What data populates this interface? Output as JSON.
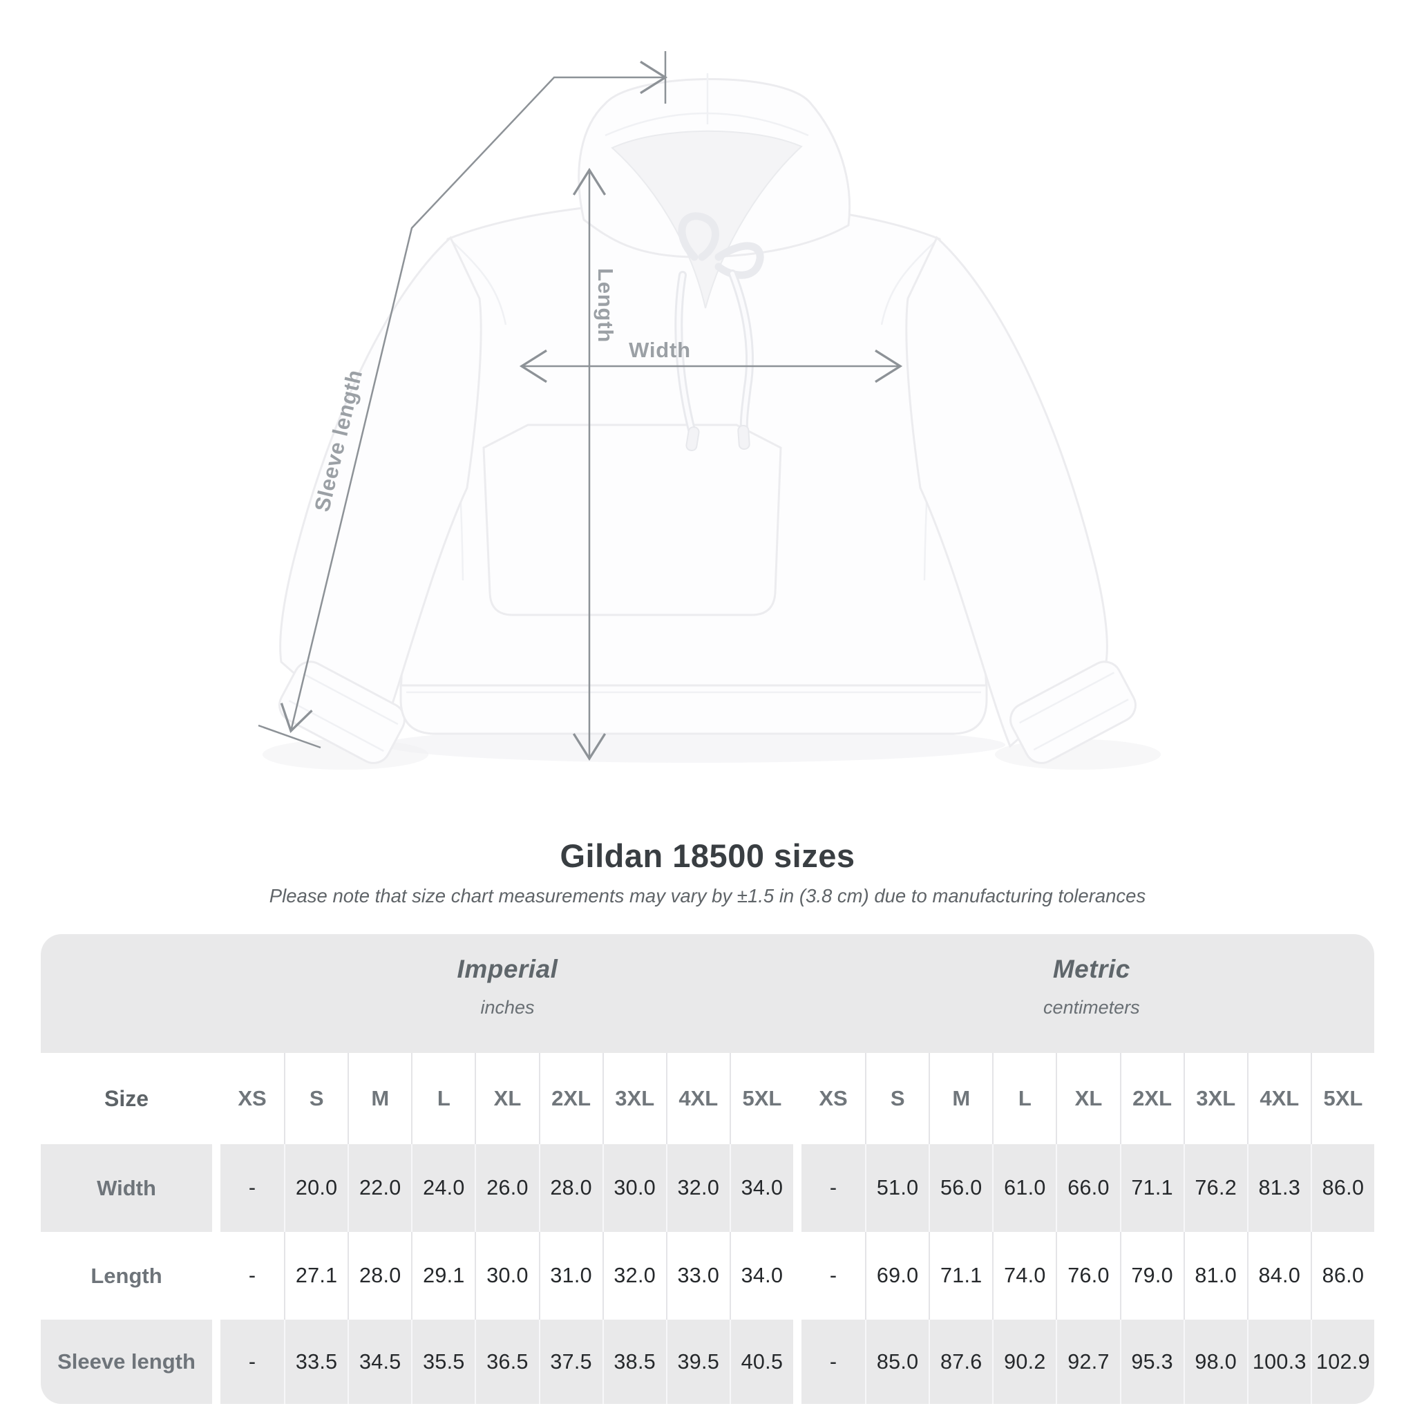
{
  "title": "Gildan 18500 sizes",
  "subtitle": "Please note that size chart measurements may vary by ±1.5 in (3.8 cm) due to manufacturing tolerances",
  "diagram": {
    "length_label": "Length",
    "width_label": "Width",
    "sleeve_label": "Sleeve length",
    "line_color": "#8d9297",
    "label_color": "#9ba0a5"
  },
  "table": {
    "size_header": "Size",
    "sizes": [
      "XS",
      "S",
      "M",
      "L",
      "XL",
      "2XL",
      "3XL",
      "4XL",
      "5XL"
    ],
    "unit_groups": [
      {
        "name": "Imperial",
        "unit": "inches"
      },
      {
        "name": "Metric",
        "unit": "centimeters"
      }
    ],
    "rows": [
      {
        "label": "Width",
        "imperial": [
          "-",
          "20.0",
          "22.0",
          "24.0",
          "26.0",
          "28.0",
          "30.0",
          "32.0",
          "34.0"
        ],
        "metric": [
          "-",
          "51.0",
          "56.0",
          "61.0",
          "66.0",
          "71.1",
          "76.2",
          "81.3",
          "86.0"
        ]
      },
      {
        "label": "Length",
        "imperial": [
          "-",
          "27.1",
          "28.0",
          "29.1",
          "30.0",
          "31.0",
          "32.0",
          "33.0",
          "34.0"
        ],
        "metric": [
          "-",
          "69.0",
          "71.1",
          "74.0",
          "76.0",
          "79.0",
          "81.0",
          "84.0",
          "86.0"
        ]
      },
      {
        "label": "Sleeve length",
        "imperial": [
          "-",
          "33.5",
          "34.5",
          "35.5",
          "36.5",
          "37.5",
          "38.5",
          "39.5",
          "40.5"
        ],
        "metric": [
          "-",
          "85.0",
          "87.6",
          "90.2",
          "92.7",
          "95.3",
          "98.0",
          "100.3",
          "102.9"
        ]
      }
    ]
  },
  "chart_data": {
    "type": "table",
    "title": "Gildan 18500 sizes",
    "note": "Measurements may vary by ±1.5 in (3.8 cm) due to manufacturing tolerances",
    "column_groups": [
      {
        "name": "Imperial",
        "unit": "inches"
      },
      {
        "name": "Metric",
        "unit": "centimeters"
      }
    ],
    "sizes": [
      "XS",
      "S",
      "M",
      "L",
      "XL",
      "2XL",
      "3XL",
      "4XL",
      "5XL"
    ],
    "rows": [
      {
        "measurement": "Width",
        "imperial_inches": [
          null,
          20.0,
          22.0,
          24.0,
          26.0,
          28.0,
          30.0,
          32.0,
          34.0
        ],
        "metric_cm": [
          null,
          51.0,
          56.0,
          61.0,
          66.0,
          71.1,
          76.2,
          81.3,
          86.0
        ]
      },
      {
        "measurement": "Length",
        "imperial_inches": [
          null,
          27.1,
          28.0,
          29.1,
          30.0,
          31.0,
          32.0,
          33.0,
          34.0
        ],
        "metric_cm": [
          null,
          69.0,
          71.1,
          74.0,
          76.0,
          79.0,
          81.0,
          84.0,
          86.0
        ]
      },
      {
        "measurement": "Sleeve length",
        "imperial_inches": [
          null,
          33.5,
          34.5,
          35.5,
          36.5,
          37.5,
          38.5,
          39.5,
          40.5
        ],
        "metric_cm": [
          null,
          85.0,
          87.6,
          90.2,
          92.7,
          95.3,
          98.0,
          100.3,
          102.9
        ]
      }
    ]
  }
}
